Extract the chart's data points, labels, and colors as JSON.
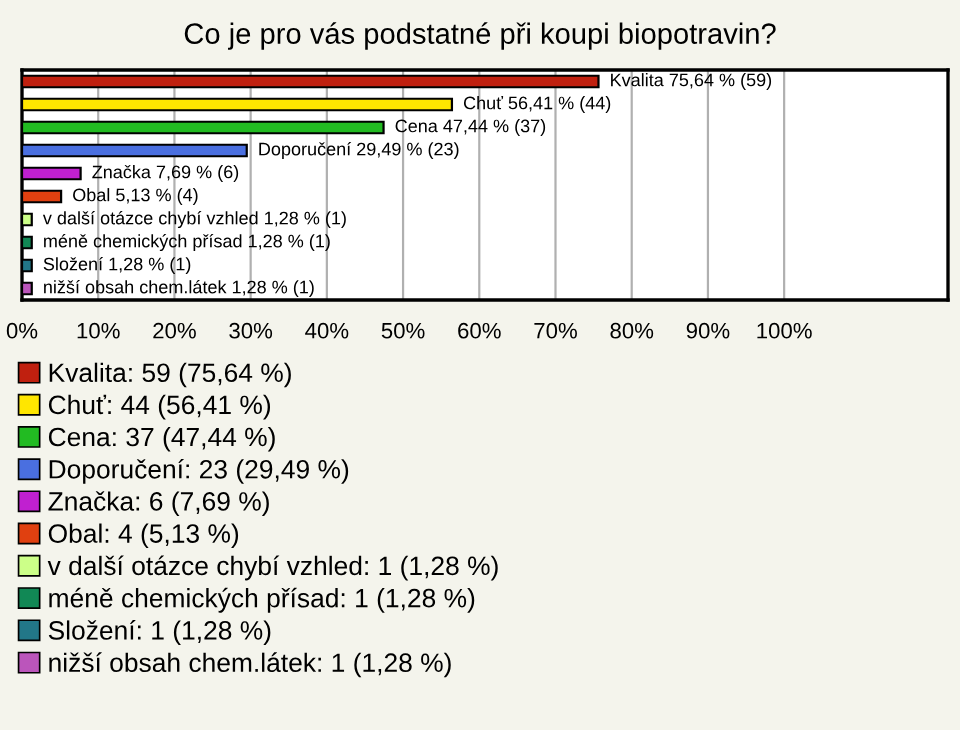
{
  "chart_data": {
    "type": "bar",
    "orientation": "horizontal",
    "title": "Co je pro vás podstatné při koupi biopotravin?",
    "categories": [
      null,
      null,
      null,
      null,
      null,
      null,
      null,
      null,
      null,
      null
    ],
    "series": [
      {
        "name": "Kvalita: 59 (75,64 %)",
        "color": "#c0200f",
        "values": [
          75.64,
          null,
          null,
          null,
          null,
          null,
          null,
          null,
          null,
          null
        ],
        "value_labels": [
          "Kvalita 75,64 % (59)",
          null,
          null,
          null,
          null,
          null,
          null,
          null,
          null,
          null
        ]
      },
      {
        "name": "Chuť: 44 (56,41 %)",
        "color": "#ffe600",
        "values": [
          null,
          56.41,
          null,
          null,
          null,
          null,
          null,
          null,
          null,
          null
        ],
        "value_labels": [
          null,
          "Chuť 56,41 % (44)",
          null,
          null,
          null,
          null,
          null,
          null,
          null,
          null
        ]
      },
      {
        "name": "Cena: 37 (47,44 %)",
        "color": "#22bb22",
        "values": [
          null,
          null,
          47.44,
          null,
          null,
          null,
          null,
          null,
          null,
          null
        ],
        "value_labels": [
          null,
          null,
          "Cena 47,44 % (37)",
          null,
          null,
          null,
          null,
          null,
          null,
          null
        ]
      },
      {
        "name": "Doporučení: 23 (29,49 %)",
        "color": "#4a6fe0",
        "values": [
          null,
          null,
          null,
          29.49,
          null,
          null,
          null,
          null,
          null,
          null
        ],
        "value_labels": [
          null,
          null,
          null,
          "Doporučení 29,49 % (23)",
          null,
          null,
          null,
          null,
          null,
          null
        ]
      },
      {
        "name": "Značka: 6 (7,69 %)",
        "color": "#c020d0",
        "values": [
          null,
          null,
          null,
          null,
          7.69,
          null,
          null,
          null,
          null,
          null
        ],
        "value_labels": [
          null,
          null,
          null,
          null,
          "Značka 7,69 % (6)",
          null,
          null,
          null,
          null,
          null
        ]
      },
      {
        "name": "Obal: 4 (5,13 %)",
        "color": "#e04010",
        "values": [
          null,
          null,
          null,
          null,
          null,
          5.13,
          null,
          null,
          null,
          null
        ],
        "value_labels": [
          null,
          null,
          null,
          null,
          null,
          "Obal 5,13 % (4)",
          null,
          null,
          null,
          null
        ]
      },
      {
        "name": "v další otázce chybí vzhled: 1 (1,28 %)",
        "color": "#ccff88",
        "values": [
          null,
          null,
          null,
          null,
          null,
          null,
          1.28,
          null,
          null,
          null
        ],
        "value_labels": [
          null,
          null,
          null,
          null,
          null,
          null,
          "v další otázce chybí vzhled 1,28 % (1)",
          null,
          null,
          null
        ]
      },
      {
        "name": "méně chemických přísad: 1 (1,28 %)",
        "color": "#118855",
        "values": [
          null,
          null,
          null,
          null,
          null,
          null,
          null,
          1.28,
          null,
          null
        ],
        "value_labels": [
          null,
          null,
          null,
          null,
          null,
          null,
          null,
          "méně chemických přísad 1,28 % (1)",
          null,
          null
        ]
      },
      {
        "name": "Složení: 1 (1,28 %)",
        "color": "#227788",
        "values": [
          null,
          null,
          null,
          null,
          null,
          null,
          null,
          null,
          1.28,
          null
        ],
        "value_labels": [
          null,
          null,
          null,
          null,
          null,
          null,
          null,
          null,
          "Složení 1,28 % (1)",
          null
        ]
      },
      {
        "name": "nižší obsah chem.látek: 1 (1,28 %)",
        "color": "#bb55bb",
        "values": [
          null,
          null,
          null,
          null,
          null,
          null,
          null,
          null,
          null,
          1.28
        ],
        "value_labels": [
          null,
          null,
          null,
          null,
          null,
          null,
          null,
          null,
          null,
          "nižší obsah chem.látek 1,28 % (1)"
        ]
      }
    ],
    "xlim": [
      0,
      121.5
    ],
    "xticks": [
      {
        "value": 0,
        "label": "0%"
      },
      {
        "value": 10,
        "label": "10%"
      },
      {
        "value": 20,
        "label": "20%"
      },
      {
        "value": 30,
        "label": "30%"
      },
      {
        "value": 40,
        "label": "40%"
      },
      {
        "value": 50,
        "label": "50%"
      },
      {
        "value": 60,
        "label": "60%"
      },
      {
        "value": 70,
        "label": "70%"
      },
      {
        "value": 80,
        "label": "80%"
      },
      {
        "value": 90,
        "label": "90%"
      },
      {
        "value": 100,
        "label": "100%"
      }
    ],
    "grid": "x",
    "legend": "bottom"
  }
}
